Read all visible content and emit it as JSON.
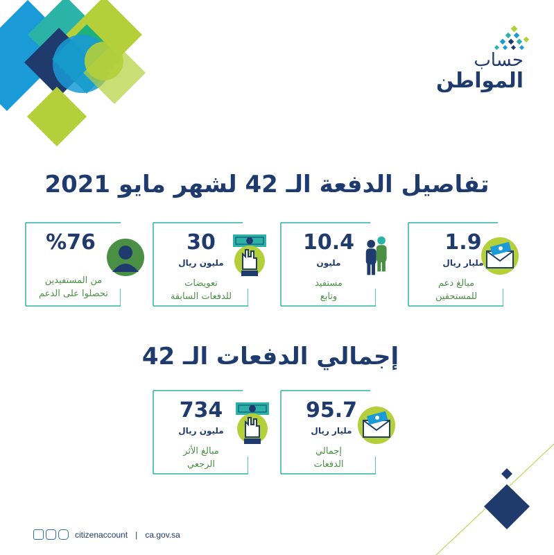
{
  "brand": {
    "logo_line1": "حساب",
    "logo_line2": "المواطن"
  },
  "title": "تفاصيل الدفعة الـ 42 لشهر مايو 2021",
  "cards": [
    {
      "value": "1.9",
      "unit": "مليار ريال",
      "desc_line1": "مبالغ دعم",
      "desc_line2": "للمستحقين",
      "icon": "envelope-money-icon"
    },
    {
      "value": "10.4",
      "unit": "مليون",
      "desc_line1": "مستفيد",
      "desc_line2": "وتابع",
      "icon": "people-icon"
    },
    {
      "value": "30",
      "unit": "مليون ريال",
      "desc_line1": "تعويضات",
      "desc_line2": "للدفعات السابقة",
      "icon": "hand-money-icon"
    },
    {
      "value": "%76",
      "unit": "",
      "desc_line1": "من المستفيدين",
      "desc_line2": "تحصلوا على الدعم",
      "icon": "user-icon"
    }
  ],
  "subtitle": "إجمالي الدفعات الـ 42",
  "totals": [
    {
      "value": "95.7",
      "unit": "مليار ريال",
      "desc_line1": "إجمالي",
      "desc_line2": "الدفعات",
      "icon": "envelope-money-icon"
    },
    {
      "value": "734",
      "unit": "مليون ريال",
      "desc_line1": "مبالغ الأثر",
      "desc_line2": "الرجعي",
      "icon": "hand-money-icon"
    }
  ],
  "footer": {
    "handle": "citizenaccount",
    "separator": "|",
    "site": "ca.gov.sa"
  },
  "colors": {
    "navy": "#1f3b6e",
    "green": "#4a8f44",
    "lime": "#b5cf3a",
    "teal": "#2ab3a6",
    "blue": "#1a9ad6"
  }
}
